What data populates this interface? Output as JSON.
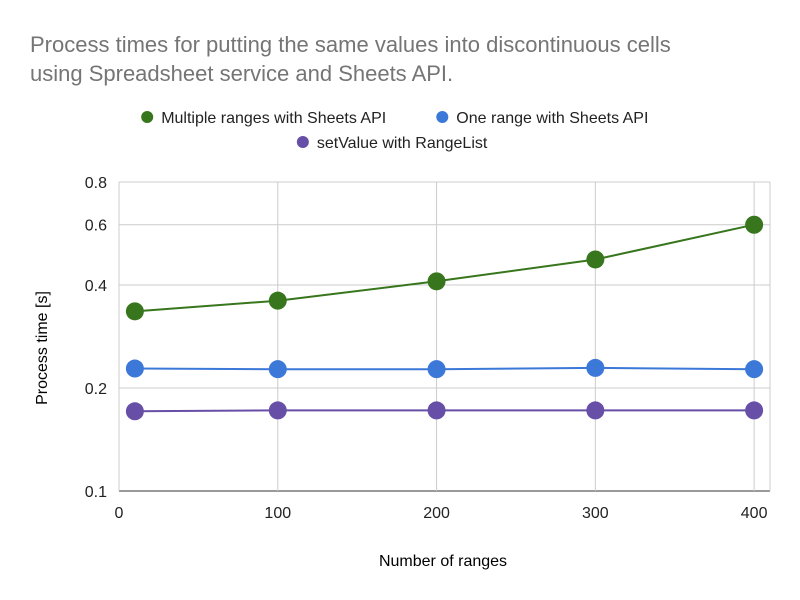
{
  "chart_data": {
    "type": "line",
    "title_lines": [
      "Process times for putting the same values into discontinuous cells",
      "using Spreadsheet service and Sheets API."
    ],
    "xlabel": "Number of ranges",
    "ylabel": "Process time [s]",
    "x_scale": "linear",
    "y_scale": "log",
    "xlim": [
      0,
      410
    ],
    "ylim": [
      0.1,
      0.8
    ],
    "x_ticks": [
      0,
      100,
      200,
      300,
      400
    ],
    "y_ticks": [
      0.1,
      0.2,
      0.4,
      0.6,
      0.8
    ],
    "grid": true,
    "legend_position": "top",
    "x": [
      10,
      100,
      200,
      300,
      400
    ],
    "series": [
      {
        "name": "Multiple ranges with Sheets API",
        "color": "#38761d",
        "values": [
          0.335,
          0.36,
          0.41,
          0.475,
          0.6
        ]
      },
      {
        "name": "One range with Sheets API",
        "color": "#3c78d8",
        "values": [
          0.228,
          0.227,
          0.227,
          0.229,
          0.227
        ]
      },
      {
        "name": "setValue with RangeList",
        "color": "#674ea7",
        "values": [
          0.171,
          0.172,
          0.172,
          0.172,
          0.172
        ]
      }
    ]
  }
}
